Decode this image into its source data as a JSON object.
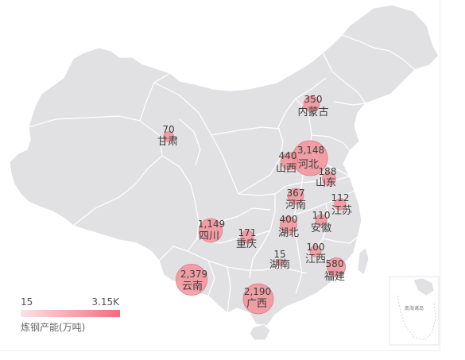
{
  "chart_data": {
    "type": "bubble-map",
    "unit_label": "炼钢产能(万吨)",
    "legend": {
      "min_label": "15",
      "max_label": "3.15K",
      "min": 15,
      "max": 3148
    },
    "colors": {
      "land": "#e1e1e3",
      "border": "#ffffff",
      "bubble": "#f28b93",
      "bubble_stroke": "#e57880",
      "legend_start": "#fbe3e6",
      "legend_end": "#ef6f7a"
    },
    "inset_label": "南海诸岛",
    "provinces": [
      {
        "name": "河北",
        "value": "3,148",
        "v": 3148
      },
      {
        "name": "云南",
        "value": "2,379",
        "v": 2379
      },
      {
        "name": "广西",
        "value": "2,190",
        "v": 2190
      },
      {
        "name": "四川",
        "value": "1,149",
        "v": 1149
      },
      {
        "name": "福建",
        "value": "580",
        "v": 580
      },
      {
        "name": "山西",
        "value": "440",
        "v": 440
      },
      {
        "name": "湖北",
        "value": "400",
        "v": 400
      },
      {
        "name": "河南",
        "value": "367",
        "v": 367
      },
      {
        "name": "内蒙古",
        "value": "350",
        "v": 350
      },
      {
        "name": "山东",
        "value": "188",
        "v": 188
      },
      {
        "name": "重庆",
        "value": "171",
        "v": 171
      },
      {
        "name": "江苏",
        "value": "112",
        "v": 112
      },
      {
        "name": "安徽",
        "value": "110",
        "v": 110
      },
      {
        "name": "江西",
        "value": "100",
        "v": 100
      },
      {
        "name": "甘肃",
        "value": "70",
        "v": 70
      },
      {
        "name": "湖南",
        "value": "15",
        "v": 15
      }
    ]
  }
}
